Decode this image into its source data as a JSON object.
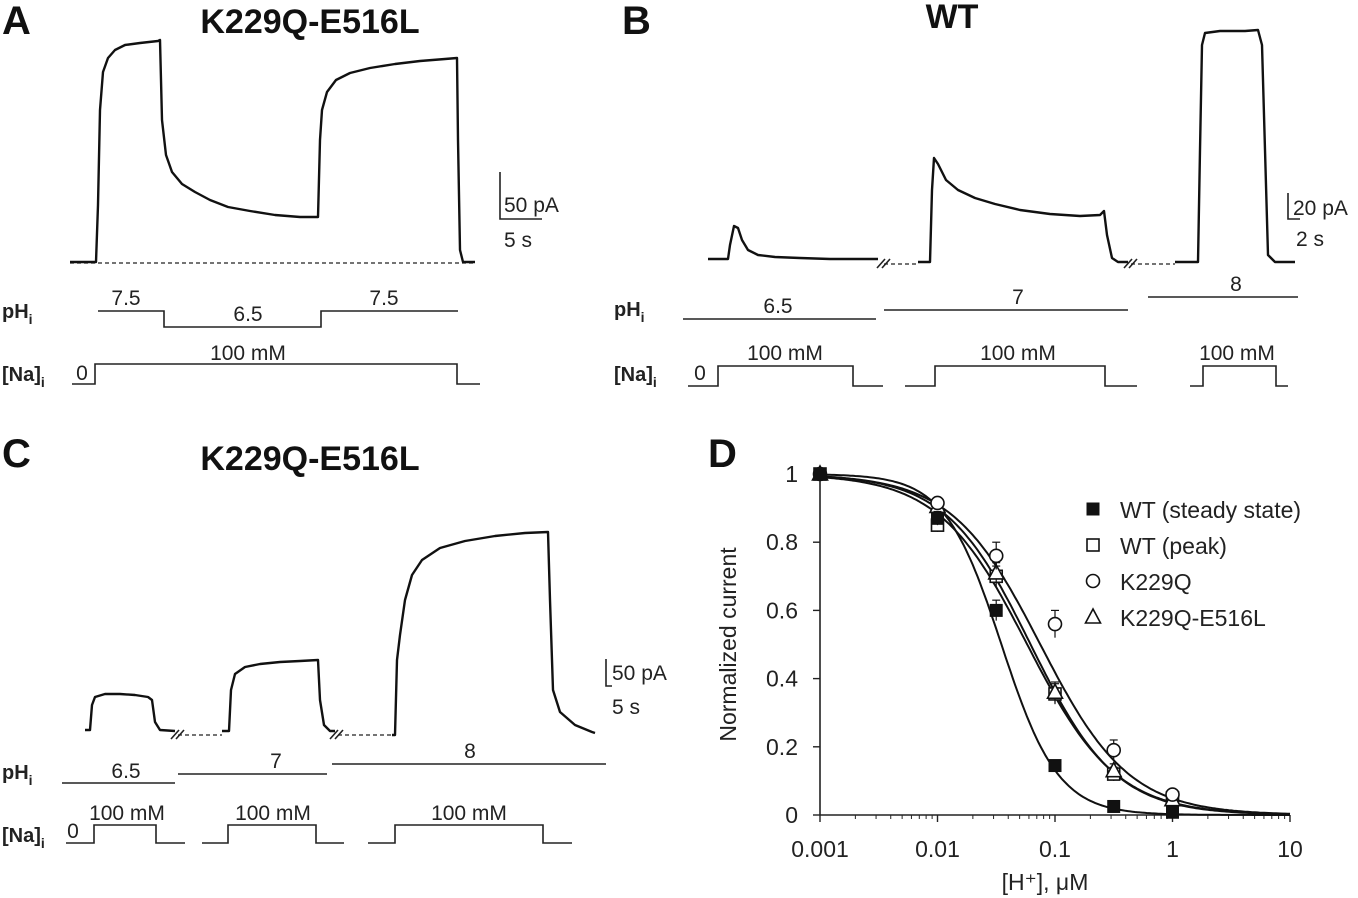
{
  "panels": {
    "A": {
      "letter": "A",
      "title": "K229Q-E516L",
      "ph_label": "pH",
      "ph_sub": "i",
      "na_label": "[Na]",
      "na_sub": "i",
      "ph_values": [
        "7.5",
        "6.5",
        "7.5"
      ],
      "na_zero": "0",
      "na_value": "100 mM",
      "scale_current": "50 pA",
      "scale_time": "5 s"
    },
    "B": {
      "letter": "B",
      "title": "WT",
      "ph_label": "pH",
      "ph_sub": "i",
      "na_label": "[Na]",
      "na_sub": "i",
      "ph_values": [
        "6.5",
        "7",
        "8"
      ],
      "na_zero": "0",
      "na_values": [
        "100 mM",
        "100 mM",
        "100 mM"
      ],
      "scale_current": "20 pA",
      "scale_time": "2 s"
    },
    "C": {
      "letter": "C",
      "title": "K229Q-E516L",
      "ph_label": "pH",
      "ph_sub": "i",
      "na_label": "[Na]",
      "na_sub": "i",
      "ph_values": [
        "6.5",
        "7",
        "8"
      ],
      "na_zero": "0",
      "na_values": [
        "100 mM",
        "100 mM",
        "100 mM"
      ],
      "scale_current": "50 pA",
      "scale_time": "5 s"
    },
    "D": {
      "letter": "D"
    }
  },
  "chart_data": {
    "type": "scatter",
    "xlabel": "[H⁺], μM",
    "ylabel": "Normalized current",
    "xscale": "log",
    "xlim": [
      0.001,
      10
    ],
    "ylim": [
      0,
      1
    ],
    "xticks": [
      "0.001",
      "0.01",
      "0.1",
      "1",
      "10"
    ],
    "yticks": [
      "0",
      "0.2",
      "0.4",
      "0.6",
      "0.8",
      "1"
    ],
    "legend_position": "top-right",
    "series": [
      {
        "name": "WT (steady state)",
        "marker": "square-filled",
        "x": [
          0.001,
          0.01,
          0.0316,
          0.1,
          0.316,
          1
        ],
        "y": [
          1.0,
          0.87,
          0.6,
          0.145,
          0.025,
          0.008
        ],
        "err": [
          0,
          0.02,
          0.03,
          0.01,
          0.005,
          0.005
        ],
        "fit": {
          "ic50": 0.035,
          "n": 1.8
        }
      },
      {
        "name": "WT (peak)",
        "marker": "square-open",
        "x": [
          0.001,
          0.01,
          0.0316,
          0.1,
          0.316,
          1
        ],
        "y": [
          1.0,
          0.85,
          0.7,
          0.355,
          0.12,
          0.05
        ],
        "err": [
          0,
          0.02,
          0.03,
          0.03,
          0.02,
          0.01
        ],
        "fit": {
          "ic50": 0.058,
          "n": 1.15
        }
      },
      {
        "name": "K229Q",
        "marker": "circle-open",
        "x": [
          0.001,
          0.01,
          0.0316,
          0.1,
          0.316,
          1
        ],
        "y": [
          1.0,
          0.915,
          0.76,
          0.56,
          0.19,
          0.06
        ],
        "err": [
          0,
          0.01,
          0.04,
          0.04,
          0.03,
          0.01
        ],
        "fit": {
          "ic50": 0.075,
          "n": 1.15
        }
      },
      {
        "name": "K229Q-E516L",
        "marker": "triangle-open",
        "x": [
          0.001,
          0.01,
          0.0316,
          0.1,
          0.316,
          1
        ],
        "y": [
          1.0,
          0.905,
          0.71,
          0.36,
          0.13,
          0.045
        ],
        "err": [
          0,
          0.01,
          0.03,
          0.03,
          0.02,
          0.01
        ],
        "fit": {
          "ic50": 0.062,
          "n": 1.2
        }
      }
    ]
  },
  "colors": {
    "ink": "#111111",
    "background": "#ffffff"
  }
}
